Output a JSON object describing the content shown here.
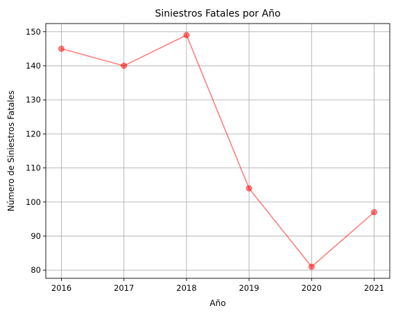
{
  "chart_data": {
    "type": "line",
    "title": "Siniestros Fatales por Año",
    "xlabel": "Año",
    "ylabel": "Número de Siniestros Fatales",
    "x": [
      2016,
      2017,
      2018,
      2019,
      2020,
      2021
    ],
    "series": [
      {
        "values": [
          145,
          140,
          149,
          104,
          81,
          97
        ],
        "color": "#ff0000",
        "marker": "circle",
        "alpha": 0.5
      }
    ],
    "x_ticks": [
      "2016",
      "2017",
      "2018",
      "2019",
      "2020",
      "2021"
    ],
    "y_ticks": [
      80,
      90,
      100,
      110,
      120,
      130,
      140,
      150
    ],
    "xlim": [
      2015.75,
      2021.25
    ],
    "ylim": [
      77.6,
      152.4
    ],
    "grid": true,
    "legend": "none"
  }
}
